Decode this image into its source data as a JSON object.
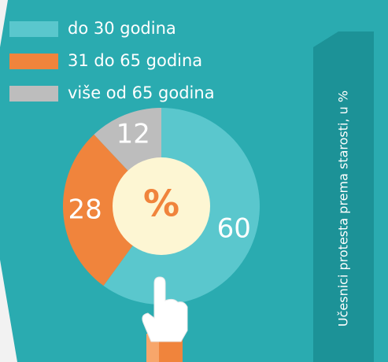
{
  "chart_data": {
    "type": "pie",
    "title": "Učesnici protesta prema starosti, u %",
    "center_label": "%",
    "categories": [
      "do 30 godina",
      "31 do 65 godina",
      "više od 65 godina"
    ],
    "values": [
      60,
      28,
      12
    ],
    "colors": [
      "#5ac7cd",
      "#f0843c",
      "#bdbdbd"
    ]
  }
}
